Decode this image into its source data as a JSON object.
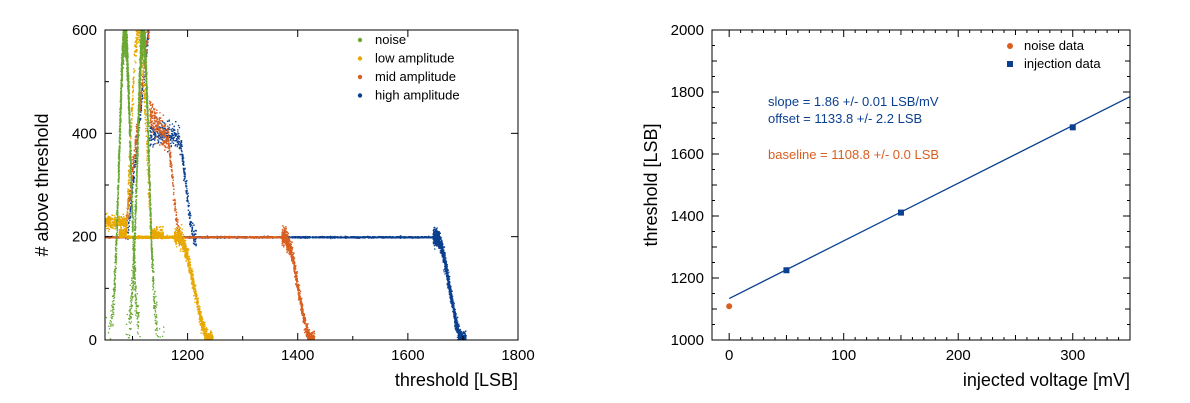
{
  "colors": {
    "noise": "#6aa832",
    "low": "#e8a800",
    "mid": "#d95f20",
    "high": "#0b3f8f",
    "fit_line": "#0b3f8f"
  },
  "chart_data": [
    {
      "type": "scatter",
      "xlabel": "threshold [LSB]",
      "ylabel": "# above threshold",
      "xlim": [
        1050,
        1800
      ],
      "ylim": [
        0,
        600
      ],
      "xticks": [
        1200,
        1400,
        1600,
        1800
      ],
      "yticks": [
        0,
        200,
        400,
        600
      ],
      "legend_position": "top-right",
      "series": [
        {
          "name": "noise",
          "peaks": [
            {
              "center": 1085,
              "height": 600,
              "width": 18
            },
            {
              "center": 1118,
              "height": 600,
              "width": 18
            }
          ]
        },
        {
          "name": "low amplitude",
          "plateau": [
            {
              "from": 1050,
              "to": 1175,
              "level": 200
            },
            {
              "from": 1050,
              "to": 1090,
              "level": 230
            }
          ],
          "falling_edge": [
            1175,
            1245
          ]
        },
        {
          "name": "mid amplitude",
          "plateau": [
            {
              "from": 1050,
              "to": 1380,
              "level": 200
            },
            {
              "from": 1100,
              "to": 1160,
              "level": 400
            }
          ],
          "falling_edge": [
            1370,
            1430
          ]
        },
        {
          "name": "high amplitude",
          "plateau": [
            {
              "from": 1050,
              "to": 1650,
              "level": 200
            },
            {
              "from": 1100,
              "to": 1180,
              "level": 400
            }
          ],
          "falling_edge": [
            1645,
            1705
          ]
        }
      ]
    },
    {
      "type": "scatter",
      "xlabel": "injected voltage [mV]",
      "ylabel": "threshold [LSB]",
      "xlim": [
        -15,
        350
      ],
      "ylim": [
        1000,
        2000
      ],
      "xticks": [
        0,
        100,
        200,
        300
      ],
      "yticks": [
        1000,
        1200,
        1400,
        1600,
        1800,
        2000
      ],
      "legend_position": "top-right",
      "series": [
        {
          "name": "noise data",
          "marker": "circle",
          "points": [
            {
              "x": 0,
              "y": 1108.8
            }
          ]
        },
        {
          "name": "injection data",
          "marker": "square",
          "points": [
            {
              "x": 50,
              "y": 1225
            },
            {
              "x": 150,
              "y": 1411
            },
            {
              "x": 300,
              "y": 1686
            }
          ]
        }
      ],
      "fit": {
        "slope": 1.86,
        "offset": 1133.8
      },
      "annotations": {
        "slope": "slope = 1.86 +/- 0.01 LSB/mV",
        "offset": "offset = 1133.8 +/- 2.2 LSB",
        "baseline": "baseline = 1108.8 +/- 0.0 LSB"
      }
    }
  ]
}
